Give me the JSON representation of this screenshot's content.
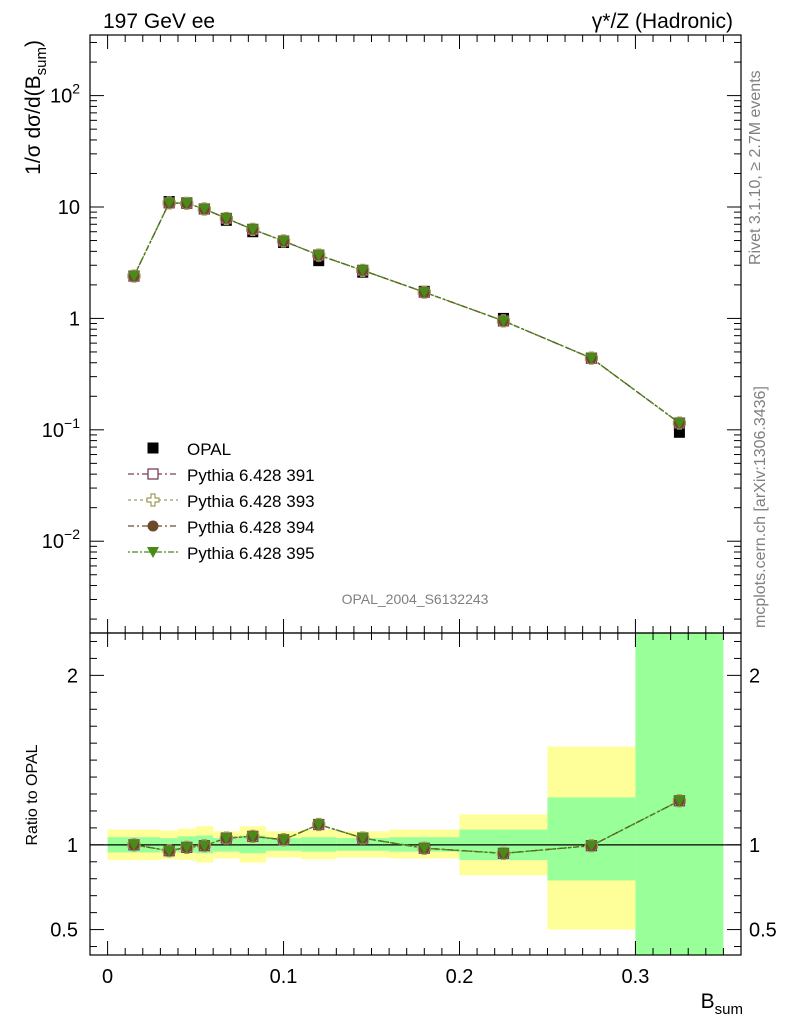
{
  "chart_data": [
    {
      "type": "scatter",
      "title_left": "197 GeV ee",
      "title_right": "γ*/Z (Hadronic)",
      "ylabel": "1/σ dσ/d(B_sum)",
      "xlabel": "B_sum",
      "y_scale": "log",
      "ylim": [
        0.0015,
        350
      ],
      "xlim": [
        -0.01,
        0.36
      ],
      "y_ticks": [
        "10^-2",
        "10^-1",
        "1",
        "10",
        "10^2"
      ],
      "analysis_label": "OPAL_2004_S6132243",
      "side_labels": [
        "Rivet 3.1.10, ≥ 2.7M events",
        "mcplots.cern.ch [arXiv:1306.3436]"
      ],
      "x": [
        0.015,
        0.035,
        0.045,
        0.055,
        0.0675,
        0.0825,
        0.1,
        0.12,
        0.145,
        0.18,
        0.225,
        0.275,
        0.325
      ],
      "series": [
        {
          "name": "OPAL",
          "marker": "filled-square",
          "color": "#000000",
          "values": [
            2.4,
            11.2,
            10.9,
            9.6,
            7.6,
            6.0,
            4.8,
            3.3,
            2.6,
            1.75,
            1.0,
            0.44,
            0.095
          ]
        },
        {
          "name": "Pythia 6.428 391",
          "marker": "open-square",
          "color": "#7a3f5a",
          "values": [
            2.4,
            10.9,
            10.8,
            9.6,
            7.9,
            6.3,
            4.95,
            3.7,
            2.7,
            1.72,
            0.95,
            0.44,
            0.115
          ]
        },
        {
          "name": "Pythia 6.428 393",
          "marker": "open-cross",
          "color": "#a39a5a",
          "values": [
            2.4,
            10.9,
            10.8,
            9.6,
            7.9,
            6.3,
            4.95,
            3.7,
            2.7,
            1.72,
            0.95,
            0.44,
            0.115
          ]
        },
        {
          "name": "Pythia 6.428 394",
          "marker": "filled-circle",
          "color": "#6b4a2a",
          "values": [
            2.4,
            10.9,
            10.8,
            9.6,
            7.9,
            6.3,
            4.95,
            3.7,
            2.7,
            1.72,
            0.95,
            0.44,
            0.115
          ]
        },
        {
          "name": "Pythia 6.428 395",
          "marker": "filled-triangle-down",
          "color": "#4a8a1a",
          "values": [
            2.4,
            10.9,
            10.8,
            9.6,
            7.9,
            6.3,
            4.95,
            3.7,
            2.7,
            1.72,
            0.95,
            0.44,
            0.115
          ]
        }
      ]
    },
    {
      "type": "scatter",
      "ylabel": "Ratio to OPAL",
      "xlabel": "B_sum",
      "ylim": [
        0.35,
        2.25
      ],
      "xlim": [
        -0.01,
        0.36
      ],
      "y_ticks": [
        0.5,
        1,
        2
      ],
      "x_ticks": [
        0,
        0.1,
        0.2,
        0.3
      ],
      "bins": [
        {
          "lo": 0.0,
          "hi": 0.03,
          "green": [
            0.955,
            1.045
          ],
          "yellow": [
            0.91,
            1.09
          ]
        },
        {
          "lo": 0.03,
          "hi": 0.04,
          "green": [
            0.96,
            1.04
          ],
          "yellow": [
            0.915,
            1.085
          ]
        },
        {
          "lo": 0.04,
          "hi": 0.05,
          "green": [
            0.955,
            1.05
          ],
          "yellow": [
            0.91,
            1.095
          ]
        },
        {
          "lo": 0.05,
          "hi": 0.06,
          "green": [
            0.95,
            1.055
          ],
          "yellow": [
            0.895,
            1.11
          ]
        },
        {
          "lo": 0.06,
          "hi": 0.075,
          "green": [
            0.96,
            1.04
          ],
          "yellow": [
            0.92,
            1.08
          ]
        },
        {
          "lo": 0.075,
          "hi": 0.09,
          "green": [
            0.95,
            1.055
          ],
          "yellow": [
            0.895,
            1.11
          ]
        },
        {
          "lo": 0.09,
          "hi": 0.11,
          "green": [
            0.965,
            1.04
          ],
          "yellow": [
            0.925,
            1.08
          ]
        },
        {
          "lo": 0.11,
          "hi": 0.13,
          "green": [
            0.96,
            1.045
          ],
          "yellow": [
            0.915,
            1.09
          ]
        },
        {
          "lo": 0.13,
          "hi": 0.16,
          "green": [
            0.965,
            1.04
          ],
          "yellow": [
            0.925,
            1.08
          ]
        },
        {
          "lo": 0.16,
          "hi": 0.2,
          "green": [
            0.96,
            1.045
          ],
          "yellow": [
            0.92,
            1.09
          ]
        },
        {
          "lo": 0.2,
          "hi": 0.25,
          "green": [
            0.91,
            1.09
          ],
          "yellow": [
            0.82,
            1.18
          ]
        },
        {
          "lo": 0.25,
          "hi": 0.3,
          "green": [
            0.79,
            1.28
          ],
          "yellow": [
            0.5,
            1.58
          ]
        },
        {
          "lo": 0.3,
          "hi": 0.35,
          "green": [
            0.35,
            2.25
          ],
          "yellow": [
            0.35,
            2.25
          ]
        }
      ],
      "x": [
        0.015,
        0.035,
        0.045,
        0.055,
        0.0675,
        0.0825,
        0.1,
        0.12,
        0.145,
        0.18,
        0.225,
        0.275,
        0.325
      ],
      "ratio_values": [
        1.0,
        0.965,
        0.985,
        0.995,
        1.04,
        1.05,
        1.03,
        1.12,
        1.04,
        0.98,
        0.95,
        0.995,
        1.26
      ]
    }
  ],
  "legend_title_marker_label": "OPAL"
}
